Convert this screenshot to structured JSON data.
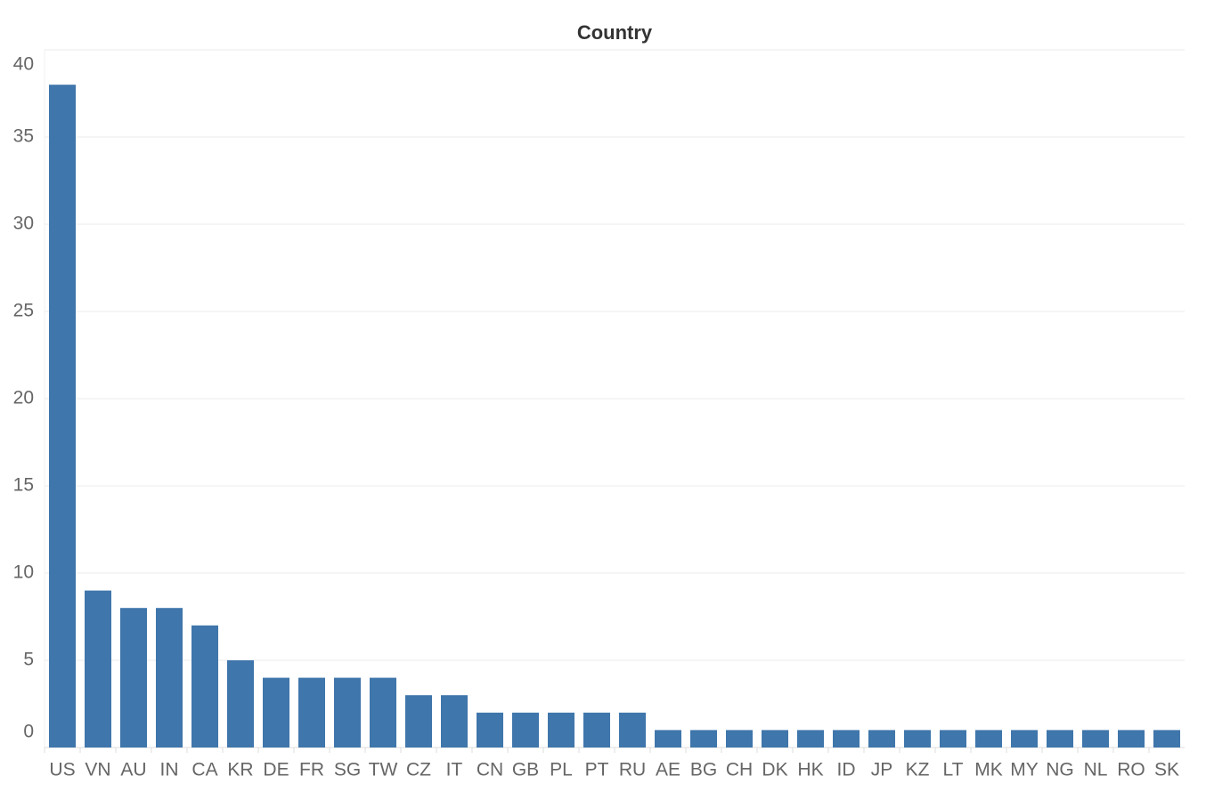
{
  "chart_data": {
    "type": "bar",
    "title": "Country",
    "categories": [
      "US",
      "VN",
      "AU",
      "IN",
      "CA",
      "KR",
      "DE",
      "FR",
      "SG",
      "TW",
      "CZ",
      "IT",
      "CN",
      "GB",
      "PL",
      "PT",
      "RU",
      "AE",
      "BG",
      "CH",
      "DK",
      "HK",
      "ID",
      "JP",
      "KZ",
      "LT",
      "MK",
      "MY",
      "NG",
      "NL",
      "RO",
      "SK"
    ],
    "values": [
      38,
      9,
      8,
      8,
      7,
      5,
      4,
      4,
      4,
      4,
      3,
      3,
      2,
      2,
      2,
      2,
      2,
      1,
      1,
      1,
      1,
      1,
      1,
      1,
      1,
      1,
      1,
      1,
      1,
      1,
      1,
      1
    ],
    "color": "#3f76ab",
    "ylim": [
      0,
      40
    ],
    "yticks": [
      0,
      5,
      10,
      15,
      20,
      25,
      30,
      35,
      40
    ],
    "grid": true
  }
}
